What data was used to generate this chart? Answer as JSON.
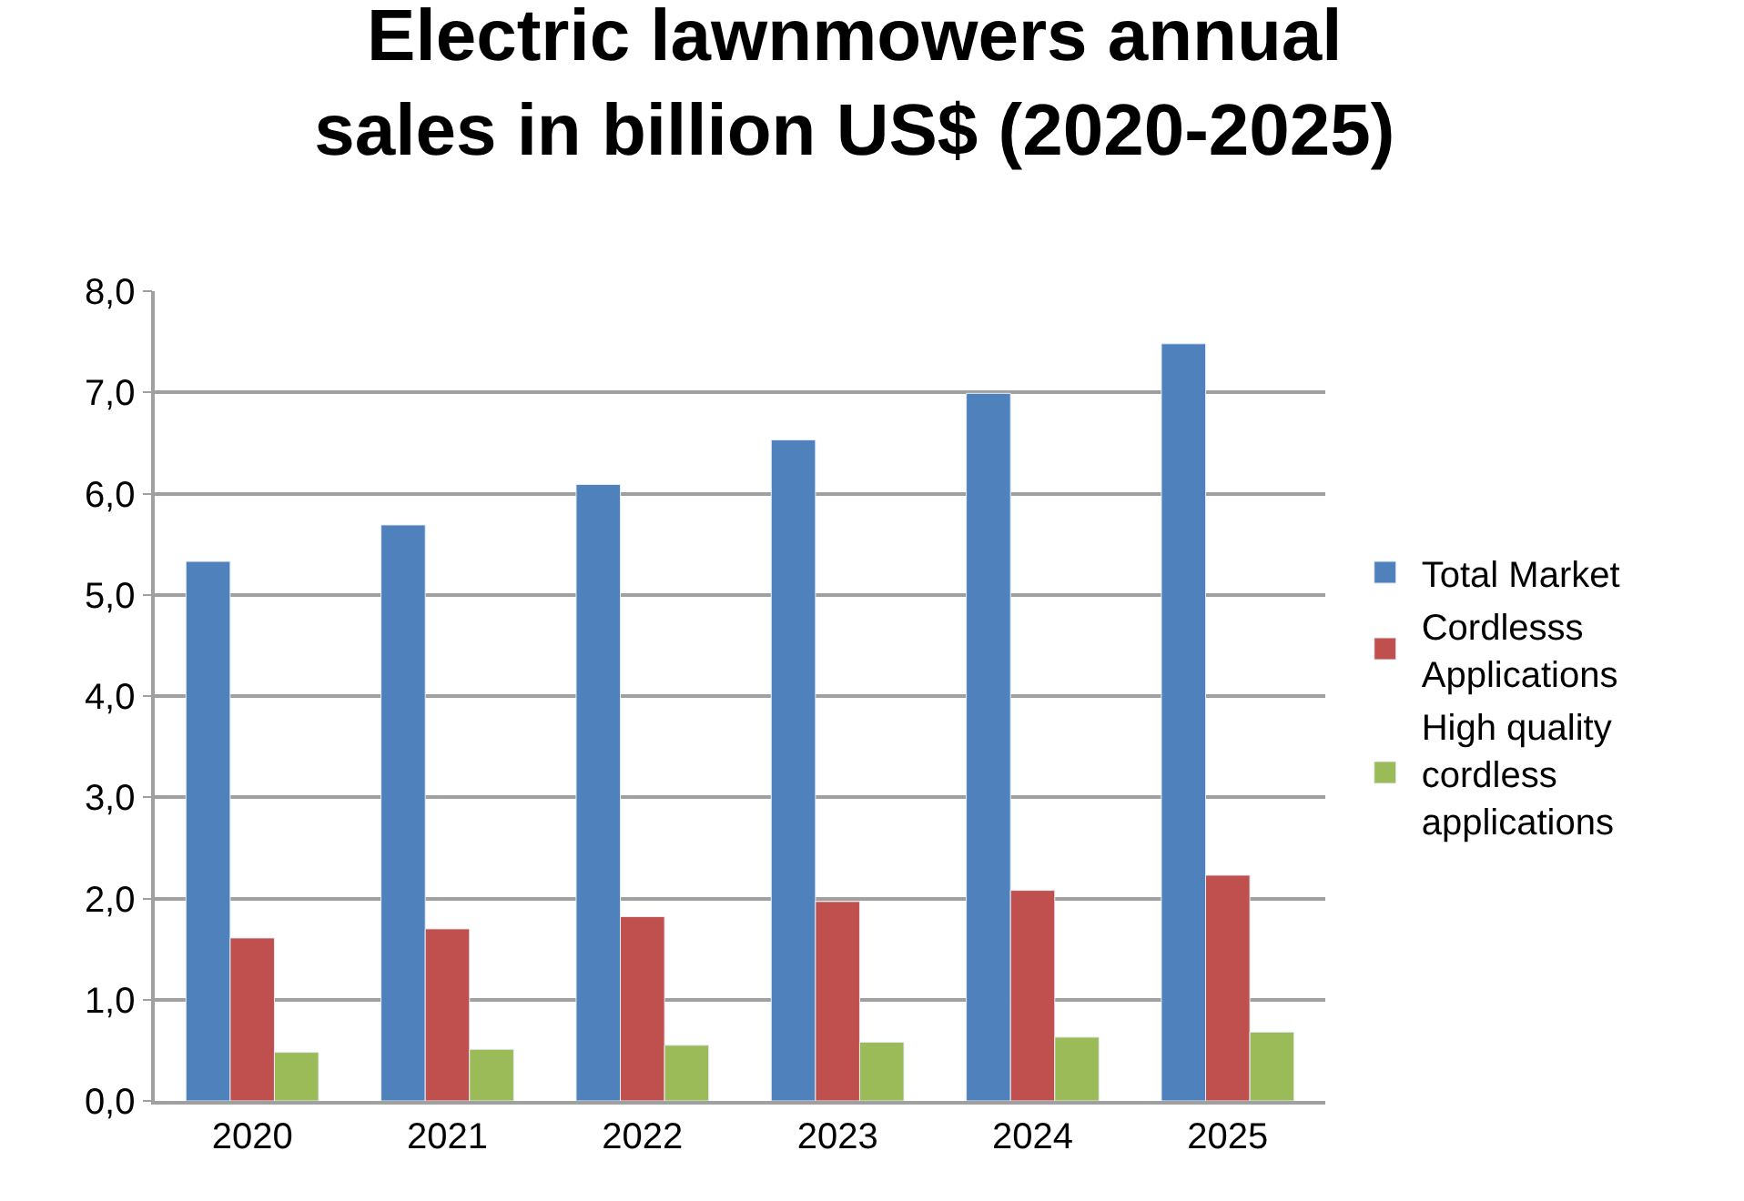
{
  "chart_data": {
    "type": "bar",
    "title": "Electric lawnmowers annual\nsales in billion US$ (2020-2025)",
    "categories": [
      "2020",
      "2021",
      "2022",
      "2023",
      "2024",
      "2025"
    ],
    "series": [
      {
        "name": "Total Market",
        "color": "#4f81bd",
        "values": [
          5.33,
          5.69,
          6.09,
          6.53,
          6.99,
          7.48
        ]
      },
      {
        "name": "Cordlesss\nApplications",
        "color": "#c0504d",
        "values": [
          1.61,
          1.7,
          1.82,
          1.97,
          2.08,
          2.23
        ]
      },
      {
        "name": "High quality\ncordless\napplications",
        "color": "#9bbb59",
        "values": [
          0.48,
          0.51,
          0.55,
          0.58,
          0.63,
          0.68
        ]
      }
    ],
    "ylim": [
      0,
      8
    ],
    "yticks": [
      {
        "value": 0,
        "label": "0,0"
      },
      {
        "value": 1,
        "label": "1,0"
      },
      {
        "value": 2,
        "label": "2,0"
      },
      {
        "value": 3,
        "label": "3,0"
      },
      {
        "value": 4,
        "label": "4,0"
      },
      {
        "value": 5,
        "label": "5,0"
      },
      {
        "value": 6,
        "label": "6,0"
      },
      {
        "value": 7,
        "label": "7,0"
      },
      {
        "value": 8,
        "label": "8,0"
      }
    ],
    "grid": "y",
    "legend": "right"
  }
}
